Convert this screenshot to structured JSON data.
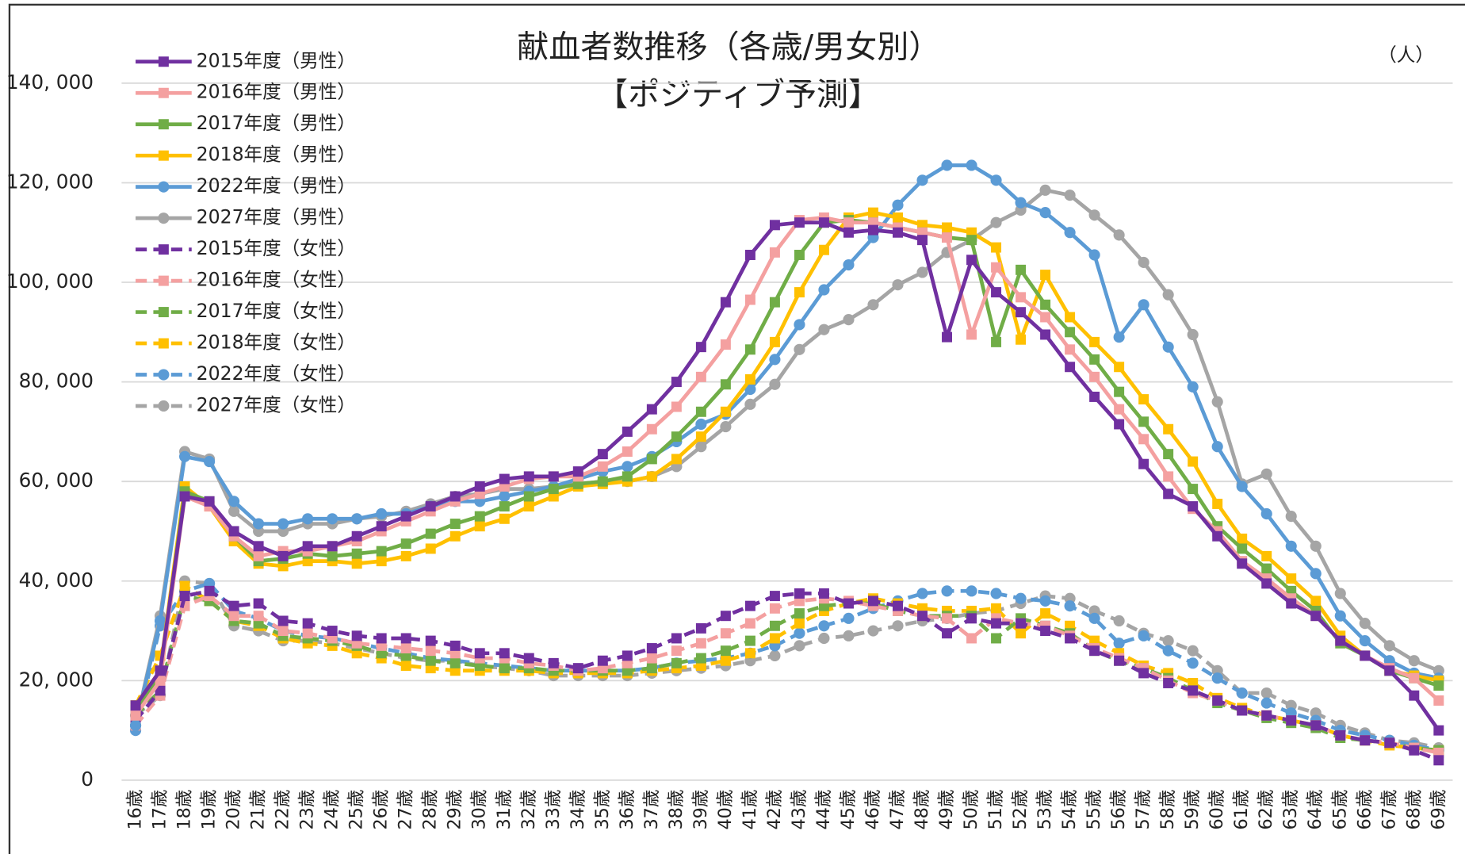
{
  "chart_data": {
    "type": "line",
    "title": "献血者数推移（各歳/男女別）",
    "subtitle": "【ポジティブ予測】",
    "unit": "（人）",
    "grid": true,
    "legend": "top-left",
    "ylim": [
      0,
      140000
    ],
    "yticks": [
      0,
      {
        "value": 20000,
        "label": "20, 000"
      },
      {
        "value": 40000,
        "label": "40, 000"
      },
      {
        "value": 60000,
        "label": "60, 000"
      },
      {
        "value": 80000,
        "label": "80, 000"
      },
      {
        "value": 100000,
        "label": "100, 000"
      },
      {
        "value": 120000,
        "label": "120, 000"
      },
      {
        "value": 140000,
        "label": "140, 000"
      }
    ],
    "categories": [
      "16歳",
      "17歳",
      "18歳",
      "19歳",
      "20歳",
      "21歳",
      "22歳",
      "23歳",
      "24歳",
      "25歳",
      "26歳",
      "27歳",
      "28歳",
      "29歳",
      "30歳",
      "31歳",
      "32歳",
      "33歳",
      "34歳",
      "35歳",
      "36歳",
      "37歳",
      "38歳",
      "39歳",
      "40歳",
      "41歳",
      "42歳",
      "43歳",
      "44歳",
      "45歳",
      "46歳",
      "47歳",
      "48歳",
      "49歳",
      "50歳",
      "51歳",
      "52歳",
      "53歳",
      "54歳",
      "55歳",
      "56歳",
      "57歳",
      "58歳",
      "59歳",
      "60歳",
      "61歳",
      "62歳",
      "63歳",
      "64歳",
      "65歳",
      "66歳",
      "67歳",
      "68歳",
      "69歳"
    ],
    "series": [
      {
        "name": "2015年度（男性）",
        "color": "#7030a0",
        "marker": "square",
        "line_style": "solid",
        "values": [
          15000,
          22000,
          57000,
          56000,
          50000,
          47000,
          45000,
          47000,
          47000,
          49000,
          51000,
          53000,
          55000,
          57000,
          59000,
          60500,
          61000,
          61000,
          62000,
          65500,
          70000,
          74500,
          80000,
          87000,
          96000,
          105500,
          111500,
          112000,
          112000,
          110000,
          110500,
          110000,
          108500,
          89000,
          104500,
          98000,
          94000,
          89500,
          83000,
          77000,
          71500,
          63500,
          57500,
          55000,
          49000,
          43500,
          39500,
          35500,
          33000,
          28000,
          25000,
          22000,
          17000,
          10000
        ]
      },
      {
        "name": "2016年度（男性）",
        "color": "#f4a0a0",
        "marker": "square",
        "line_style": "solid",
        "values": [
          13000,
          20000,
          57000,
          55000,
          49000,
          45000,
          46000,
          46000,
          47000,
          48000,
          50000,
          52000,
          54000,
          56000,
          57500,
          59000,
          60500,
          61000,
          61000,
          63000,
          66000,
          70500,
          75000,
          81000,
          87500,
          96500,
          106000,
          112500,
          113000,
          112000,
          112000,
          111000,
          110000,
          109000,
          89500,
          103000,
          97000,
          93000,
          86500,
          81000,
          74500,
          68500,
          61000,
          54500,
          50000,
          44000,
          40500,
          36500,
          33000,
          28000,
          25000,
          22500,
          20500,
          16000
        ]
      },
      {
        "name": "2017年度（男性）",
        "color": "#70ad47",
        "marker": "square",
        "line_style": "solid",
        "values": [
          14000,
          21000,
          58000,
          56000,
          49000,
          44000,
          44500,
          45500,
          45000,
          45500,
          46000,
          47500,
          49500,
          51500,
          53000,
          55000,
          57000,
          58500,
          59500,
          60000,
          61000,
          64500,
          69000,
          74000,
          79500,
          86500,
          96000,
          105500,
          112000,
          112500,
          112000,
          111000,
          110000,
          109000,
          108500,
          88000,
          102500,
          95500,
          90000,
          84500,
          78000,
          72000,
          65500,
          58500,
          51000,
          46500,
          42500,
          38000,
          34000,
          27500,
          25000,
          22000,
          20500,
          19000
        ]
      },
      {
        "name": "2018年度（男性）",
        "color": "#ffc000",
        "marker": "square",
        "line_style": "solid",
        "values": [
          15000,
          22000,
          59000,
          55000,
          48000,
          43500,
          43000,
          44000,
          44000,
          43500,
          44000,
          45000,
          46500,
          49000,
          51000,
          52500,
          55000,
          57000,
          59000,
          59500,
          60000,
          61000,
          64500,
          69000,
          74000,
          80500,
          88000,
          98000,
          106500,
          113000,
          114000,
          113000,
          111500,
          111000,
          110000,
          107000,
          88500,
          101500,
          93000,
          88000,
          83000,
          76500,
          70500,
          64000,
          55500,
          48500,
          45000,
          40500,
          36000,
          29000,
          25000,
          22000,
          21000,
          20000
        ]
      },
      {
        "name": "2022年度（男性）",
        "color": "#5b9bd5",
        "marker": "circle",
        "line_style": "solid",
        "values": [
          11000,
          32000,
          65000,
          64000,
          56000,
          51500,
          51500,
          52500,
          52500,
          52500,
          53500,
          53500,
          55000,
          56000,
          56000,
          57000,
          58000,
          59000,
          60500,
          62000,
          63000,
          65000,
          68000,
          71500,
          73500,
          78500,
          84500,
          91500,
          98500,
          103500,
          109000,
          115500,
          120500,
          123500,
          123500,
          120500,
          116000,
          114000,
          110000,
          105500,
          89000,
          95500,
          87000,
          79000,
          67000,
          59000,
          53500,
          47000,
          41500,
          33000,
          28000,
          24000,
          21500,
          20500
        ]
      },
      {
        "name": "2027年度（男性）",
        "color": "#a5a5a5",
        "marker": "circle",
        "line_style": "solid",
        "values": [
          11000,
          33000,
          66000,
          64500,
          54000,
          50000,
          50000,
          51500,
          51500,
          52500,
          53000,
          54000,
          55500,
          57000,
          57500,
          58500,
          58500,
          59000,
          59500,
          60000,
          60000,
          61000,
          63000,
          67000,
          71000,
          75500,
          79500,
          86500,
          90500,
          92500,
          95500,
          99500,
          102000,
          106000,
          108500,
          112000,
          114500,
          118500,
          117500,
          113500,
          109500,
          104000,
          97500,
          89500,
          76000,
          59500,
          61500,
          53000,
          47000,
          37500,
          31500,
          27000,
          24000,
          22000
        ]
      },
      {
        "name": "2015年度（女性）",
        "color": "#7030a0",
        "marker": "square",
        "line_style": "dashed",
        "values": [
          12000,
          18000,
          37000,
          38000,
          35000,
          35500,
          32000,
          31500,
          30000,
          29000,
          28500,
          28500,
          28000,
          27000,
          25500,
          25500,
          24500,
          23500,
          22500,
          24000,
          25000,
          26500,
          28500,
          30500,
          33000,
          35000,
          37000,
          37500,
          37500,
          35500,
          36000,
          35000,
          33000,
          29500,
          32500,
          31500,
          31500,
          30000,
          28500,
          26000,
          24000,
          21500,
          19500,
          18000,
          16000,
          14000,
          13000,
          12000,
          11000,
          9000,
          8000,
          7500,
          6000,
          4000
        ]
      },
      {
        "name": "2016年度（女性）",
        "color": "#f4a0a0",
        "marker": "square",
        "line_style": "dashed",
        "values": [
          11000,
          17000,
          35000,
          37000,
          33000,
          33000,
          30000,
          29500,
          28500,
          27500,
          27000,
          26500,
          26000,
          25500,
          24500,
          24500,
          23500,
          23000,
          22000,
          22500,
          23500,
          24500,
          26000,
          27500,
          29500,
          31500,
          34500,
          36000,
          36500,
          36000,
          35000,
          34000,
          33000,
          32500,
          28500,
          32500,
          31500,
          31000,
          29000,
          26500,
          24500,
          22500,
          20000,
          17500,
          16000,
          14000,
          13000,
          12000,
          11000,
          9000,
          8000,
          7500,
          6500,
          5500
        ]
      },
      {
        "name": "2017年度（女性）",
        "color": "#70ad47",
        "marker": "square",
        "line_style": "dashed",
        "values": [
          13000,
          18000,
          37000,
          36000,
          32000,
          31500,
          29000,
          28500,
          28000,
          27000,
          25500,
          25000,
          24000,
          23500,
          23000,
          22500,
          22500,
          22000,
          22000,
          22000,
          22000,
          22500,
          23500,
          24500,
          26000,
          28000,
          31000,
          33500,
          35000,
          35500,
          35500,
          34000,
          33000,
          33000,
          33000,
          28500,
          32500,
          31000,
          29500,
          26000,
          24000,
          22500,
          20500,
          18000,
          15500,
          14000,
          12500,
          11500,
          10500,
          8500,
          8000,
          7500,
          6500,
          6000
        ]
      },
      {
        "name": "2018年度（女性）",
        "color": "#ffc000",
        "marker": "square",
        "line_style": "dashed",
        "values": [
          15000,
          25000,
          39000,
          36000,
          32000,
          31000,
          28500,
          27500,
          27000,
          25500,
          24500,
          23000,
          22500,
          22000,
          22000,
          22000,
          22000,
          21500,
          21500,
          21500,
          21500,
          22000,
          22500,
          23000,
          24000,
          25500,
          28500,
          31500,
          34000,
          35500,
          36500,
          35500,
          34500,
          34000,
          34000,
          34500,
          29500,
          33500,
          31000,
          28000,
          25500,
          23000,
          21500,
          19500,
          16500,
          14500,
          13000,
          12000,
          11000,
          9000,
          8000,
          7000,
          6500,
          6000
        ]
      },
      {
        "name": "2022年度（女性）",
        "color": "#5b9bd5",
        "marker": "circle",
        "line_style": "dashed",
        "values": [
          10000,
          31000,
          38000,
          39500,
          34000,
          32500,
          30000,
          29000,
          28500,
          27500,
          26500,
          25500,
          24500,
          24000,
          23500,
          23000,
          22500,
          22000,
          22000,
          22000,
          22000,
          22500,
          23500,
          24000,
          24500,
          25500,
          27000,
          29500,
          31000,
          32500,
          34500,
          36000,
          37500,
          38000,
          38000,
          37500,
          36500,
          36000,
          35000,
          32500,
          27500,
          29000,
          26000,
          23500,
          20500,
          17500,
          15500,
          13500,
          12000,
          10000,
          9000,
          8000,
          7000,
          6000
        ]
      },
      {
        "name": "2027年度（女性）",
        "color": "#a5a5a5",
        "marker": "circle",
        "line_style": "dashed",
        "values": [
          13000,
          17000,
          40000,
          39500,
          31000,
          30000,
          28000,
          28000,
          27500,
          26500,
          25500,
          24500,
          24000,
          24000,
          23000,
          22500,
          22000,
          21000,
          21000,
          21000,
          21000,
          21500,
          22000,
          22500,
          23000,
          24000,
          25000,
          27000,
          28500,
          29000,
          30000,
          31000,
          32000,
          32500,
          33500,
          34000,
          35500,
          37000,
          36500,
          34000,
          32000,
          29500,
          28000,
          26000,
          22000,
          17500,
          17500,
          15000,
          13500,
          11000,
          9500,
          8000,
          7500,
          6500
        ]
      }
    ]
  }
}
